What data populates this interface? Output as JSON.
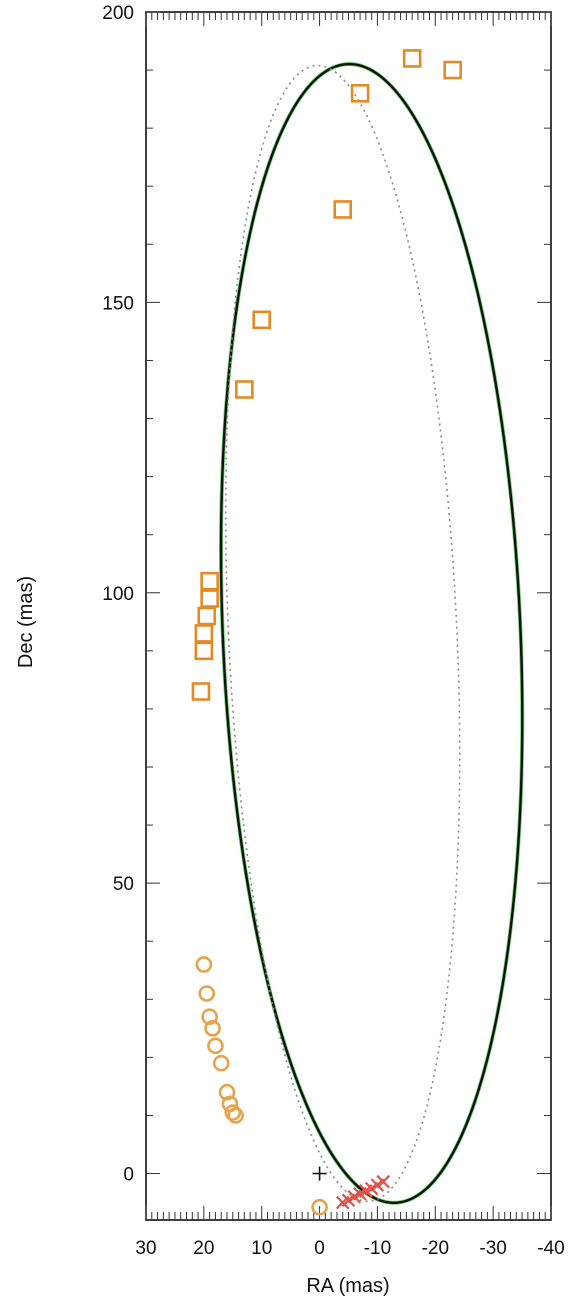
{
  "chart_data": {
    "type": "scatter",
    "xlabel": "RA (mas)",
    "ylabel": "Dec (mas)",
    "xlim": [
      30,
      -40
    ],
    "ylim": [
      -8,
      200
    ],
    "x_reversed": true,
    "grid": false,
    "xticks": [
      30,
      20,
      10,
      0,
      -10,
      -20,
      -30,
      -40
    ],
    "xtick_labels": [
      "30",
      "20",
      "10",
      "0",
      "-10",
      "-20",
      "-30",
      "-40"
    ],
    "yticks": [
      0,
      50,
      100,
      150,
      200
    ],
    "ytick_labels": [
      "0",
      "50",
      "100",
      "150",
      "200"
    ],
    "colors": {
      "orbit": "#111111",
      "orbit_highlight": "#6fd36f",
      "dotted_orbit": "#8a8a8a",
      "squares": "#e38a25",
      "circles": "#e8a24a",
      "crosses": "#e0524a",
      "center_marker": "#111111"
    },
    "series": [
      {
        "marker": "square",
        "points": [
          [
            -16,
            192
          ],
          [
            -23,
            190
          ],
          [
            -7,
            186
          ],
          [
            -4,
            166
          ],
          [
            10,
            147
          ],
          [
            13,
            135
          ],
          [
            19,
            102
          ],
          [
            19,
            99
          ],
          [
            19.5,
            96
          ],
          [
            20,
            93
          ],
          [
            20,
            90
          ],
          [
            20.5,
            83
          ]
        ]
      },
      {
        "marker": "circle",
        "points": [
          [
            20,
            36
          ],
          [
            19.5,
            31
          ],
          [
            19,
            27
          ],
          [
            18.5,
            25
          ],
          [
            18,
            22
          ],
          [
            17,
            19
          ],
          [
            16,
            14
          ],
          [
            15.5,
            12
          ],
          [
            15,
            10.5
          ],
          [
            14.5,
            10
          ],
          [
            0,
            -5.8
          ]
        ]
      },
      {
        "marker": "x",
        "points": [
          [
            -4,
            -5
          ],
          [
            -5,
            -4.6
          ],
          [
            -6,
            -4
          ],
          [
            -7,
            -3.5
          ],
          [
            -8,
            -3
          ],
          [
            -9,
            -2.6
          ],
          [
            -10,
            -2
          ],
          [
            -11,
            -1.4
          ]
        ]
      },
      {
        "marker": "plus",
        "points": [
          [
            0,
            0
          ]
        ]
      }
    ],
    "curves": [
      {
        "style": "solid",
        "ellipse": {
          "center": [
            -9,
            93
          ],
          "semi_major": 99,
          "semi_minor": 26,
          "rotation_deg": -8
        }
      },
      {
        "style": "dotted",
        "ellipse": {
          "center": [
            -4,
            93
          ],
          "semi_major": 99,
          "semi_minor": 20,
          "rotation_deg": -9
        }
      }
    ]
  }
}
